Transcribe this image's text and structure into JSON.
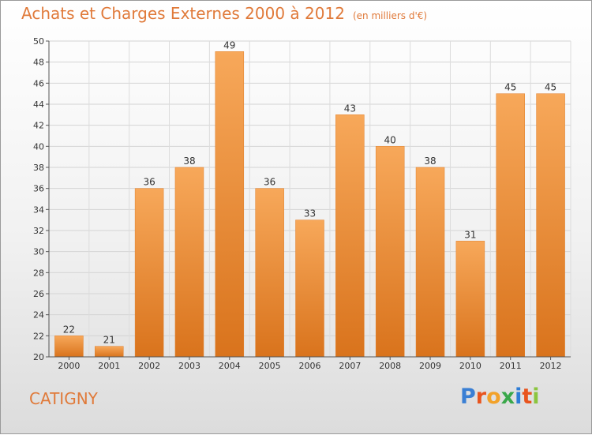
{
  "chart_data": {
    "type": "bar",
    "title": "Achats et Charges Externes 2000 à 2012",
    "subtitle": "(en milliers d'€)",
    "categories": [
      "2000",
      "2001",
      "2002",
      "2003",
      "2004",
      "2005",
      "2006",
      "2007",
      "2008",
      "2009",
      "2010",
      "2011",
      "2012"
    ],
    "values": [
      22,
      21,
      36,
      38,
      49,
      36,
      33,
      43,
      40,
      38,
      31,
      45,
      45
    ],
    "ylim": [
      20,
      50
    ],
    "yticks": [
      20,
      22,
      24,
      26,
      28,
      30,
      32,
      34,
      36,
      38,
      40,
      42,
      44,
      46,
      48,
      50
    ],
    "xlabel": "",
    "ylabel": "",
    "grid": true,
    "bar_color": "#f0923a"
  },
  "footer": {
    "commune": "CATIGNY",
    "logo_letters": [
      "P",
      "r",
      "o",
      "x",
      "i",
      "t",
      "i"
    ],
    "logo_colors": [
      "#3a7fd4",
      "#e8541e",
      "#f2a22a",
      "#3aa84a",
      "#2e7dd6",
      "#e8541e",
      "#8bc53f"
    ]
  }
}
